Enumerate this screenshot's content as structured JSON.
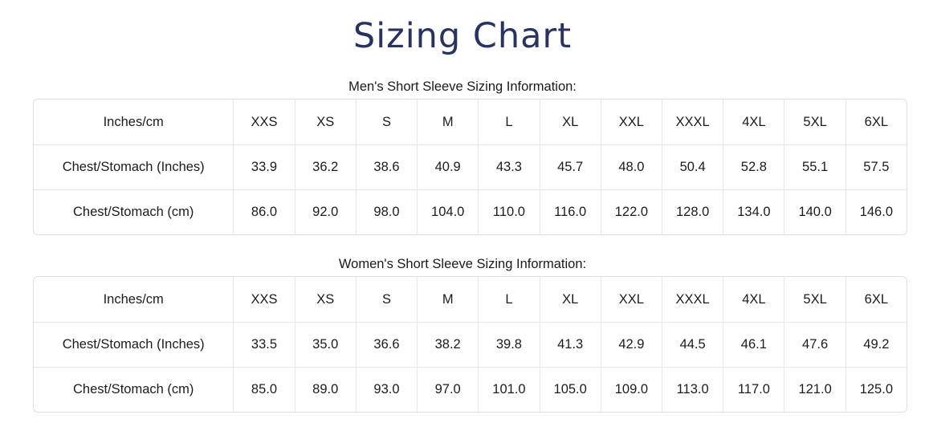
{
  "page": {
    "title": "Sizing Chart",
    "title_color": "#283360",
    "background_color": "#ffffff",
    "table_border_color": "#e0e0e0",
    "cell_divider_color": "#e7e7e7",
    "text_color": "#1c1c1c"
  },
  "tables": [
    {
      "heading": "Men's Short Sleeve Sizing Information:",
      "columns": [
        "Inches/cm",
        "XXS",
        "XS",
        "S",
        "M",
        "L",
        "XL",
        "XXL",
        "XXXL",
        "4XL",
        "5XL",
        "6XL"
      ],
      "rows": [
        {
          "label": "Chest/Stomach (Inches)",
          "values": [
            "33.9",
            "36.2",
            "38.6",
            "40.9",
            "43.3",
            "45.7",
            "48.0",
            "50.4",
            "52.8",
            "55.1",
            "57.5"
          ]
        },
        {
          "label": "Chest/Stomach (cm)",
          "values": [
            "86.0",
            "92.0",
            "98.0",
            "104.0",
            "110.0",
            "116.0",
            "122.0",
            "128.0",
            "134.0",
            "140.0",
            "146.0"
          ]
        }
      ]
    },
    {
      "heading": "Women's Short Sleeve Sizing Information:",
      "columns": [
        "Inches/cm",
        "XXS",
        "XS",
        "S",
        "M",
        "L",
        "XL",
        "XXL",
        "XXXL",
        "4XL",
        "5XL",
        "6XL"
      ],
      "rows": [
        {
          "label": "Chest/Stomach (Inches)",
          "values": [
            "33.5",
            "35.0",
            "36.6",
            "38.2",
            "39.8",
            "41.3",
            "42.9",
            "44.5",
            "46.1",
            "47.6",
            "49.2"
          ]
        },
        {
          "label": "Chest/Stomach (cm)",
          "values": [
            "85.0",
            "89.0",
            "93.0",
            "97.0",
            "101.0",
            "105.0",
            "109.0",
            "113.0",
            "117.0",
            "121.0",
            "125.0"
          ]
        }
      ]
    }
  ]
}
